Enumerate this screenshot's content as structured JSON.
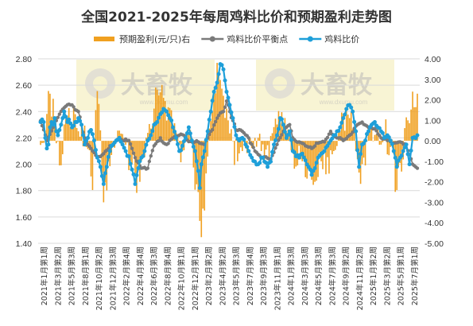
{
  "chart_data": {
    "type": "bar+line",
    "title": "全国2021-2025年每周鸡料比价和预期盈利走势图",
    "legend_position": "top",
    "watermark": {
      "brand": "大畜牧",
      "url": "www.dxumu.com"
    },
    "left_axis": {
      "min": 1.4,
      "max": 2.8,
      "ticks": [
        "1.40",
        "1.60",
        "1.80",
        "2.00",
        "2.20",
        "2.40",
        "2.60",
        "2.80"
      ]
    },
    "right_axis": {
      "min": -5,
      "max": 4,
      "ticks": [
        "-5.00",
        "-4.00",
        "-3.00",
        "-2.00",
        "-1.00",
        "0.00",
        "1.00",
        "2.00",
        "3.00",
        "4.00"
      ]
    },
    "x_tick_labels": [
      "2021年1月第1周",
      "2021年3月第2周",
      "2021年5月第3周",
      "2021年8月第1周",
      "2021年10月第2周",
      "2021年12月第3周",
      "2022年2月第4周",
      "2022年4月第4周",
      "2022年6月第3周",
      "2022年8月第4周",
      "2022年10月第1周",
      "2022年12月第1周",
      "2023年2月第2周",
      "2023年4月第2周",
      "2023年5月第3周",
      "2023年7月第4周",
      "2023年9月第3周",
      "2023年11月第1周",
      "2024年1月第3周",
      "2024年3月第3周",
      "2024年5月第3周",
      "2024年7月第3周",
      "2024年9月第2周",
      "2024年11月第2周",
      "2025年1月第2周",
      "2025年3月第2周",
      "2025年5月第1周",
      "2025年7月第1周"
    ],
    "weeks_count": 240,
    "series": [
      {
        "name": "预期盈利(元/只)右",
        "type": "bar",
        "axis": "right",
        "color": "#f0a020",
        "anchors": [
          [
            0,
            -0.2
          ],
          [
            3,
            0.5
          ],
          [
            6,
            2.3
          ],
          [
            9,
            1.0
          ],
          [
            12,
            -1.2
          ],
          [
            15,
            0.8
          ],
          [
            18,
            1.6
          ],
          [
            22,
            1.3
          ],
          [
            26,
            0.8
          ],
          [
            30,
            -0.4
          ],
          [
            33,
            -2.4
          ],
          [
            35,
            1.5
          ],
          [
            37,
            1.8
          ],
          [
            40,
            -3.0
          ],
          [
            43,
            -1.0
          ],
          [
            46,
            -0.3
          ],
          [
            50,
            0.5
          ],
          [
            54,
            -0.2
          ],
          [
            57,
            -1.0
          ],
          [
            60,
            -1.6
          ],
          [
            63,
            -2.0
          ],
          [
            66,
            -0.8
          ],
          [
            70,
            0.6
          ],
          [
            74,
            2.5
          ],
          [
            78,
            2.1
          ],
          [
            82,
            1.6
          ],
          [
            86,
            0.4
          ],
          [
            90,
            -0.5
          ],
          [
            94,
            0.3
          ],
          [
            97,
            -1.3
          ],
          [
            100,
            -2.5
          ],
          [
            102,
            -4.7
          ],
          [
            104,
            -3.4
          ],
          [
            107,
            0.6
          ],
          [
            110,
            2.5
          ],
          [
            113,
            3.3
          ],
          [
            116,
            2.2
          ],
          [
            119,
            1.0
          ],
          [
            122,
            0.0
          ],
          [
            125,
            -1.0
          ],
          [
            128,
            -0.5
          ],
          [
            131,
            -0.6
          ],
          [
            135,
            -0.3
          ],
          [
            140,
            -0.5
          ],
          [
            145,
            -0.8
          ],
          [
            150,
            0.8
          ],
          [
            153,
            1.4
          ],
          [
            156,
            0.4
          ],
          [
            160,
            -0.6
          ],
          [
            163,
            -1.2
          ],
          [
            166,
            -1.0
          ],
          [
            170,
            -1.4
          ],
          [
            174,
            -2.0
          ],
          [
            178,
            -1.0
          ],
          [
            182,
            -0.8
          ],
          [
            186,
            -0.5
          ],
          [
            190,
            0.5
          ],
          [
            194,
            1.6
          ],
          [
            197,
            1.4
          ],
          [
            200,
            -0.5
          ],
          [
            203,
            -2.1
          ],
          [
            206,
            -1.2
          ],
          [
            210,
            0.8
          ],
          [
            214,
            0.6
          ],
          [
            218,
            0.3
          ],
          [
            222,
            -0.3
          ],
          [
            226,
            -2.4
          ],
          [
            229,
            -1.5
          ],
          [
            233,
            1.0
          ],
          [
            236,
            2.4
          ],
          [
            239,
            2.3
          ]
        ]
      },
      {
        "name": "鸡料比价平衡点",
        "type": "line",
        "axis": "left",
        "color": "#7a7a7a",
        "anchors": [
          [
            0,
            2.33
          ],
          [
            4,
            2.18
          ],
          [
            8,
            2.28
          ],
          [
            12,
            2.38
          ],
          [
            16,
            2.44
          ],
          [
            20,
            2.45
          ],
          [
            24,
            2.4
          ],
          [
            28,
            2.2
          ],
          [
            32,
            2.12
          ],
          [
            36,
            2.05
          ],
          [
            40,
            2.08
          ],
          [
            44,
            2.14
          ],
          [
            48,
            2.18
          ],
          [
            52,
            2.18
          ],
          [
            56,
            2.18
          ],
          [
            60,
            2.05
          ],
          [
            64,
            1.97
          ],
          [
            68,
            1.97
          ],
          [
            72,
            2.14
          ],
          [
            76,
            2.2
          ],
          [
            80,
            2.15
          ],
          [
            84,
            2.2
          ],
          [
            88,
            2.22
          ],
          [
            92,
            2.2
          ],
          [
            96,
            2.17
          ],
          [
            100,
            2.17
          ],
          [
            104,
            2.15
          ],
          [
            108,
            2.25
          ],
          [
            112,
            2.35
          ],
          [
            116,
            2.4
          ],
          [
            118,
            2.48
          ],
          [
            120,
            2.4
          ],
          [
            124,
            2.26
          ],
          [
            128,
            2.25
          ],
          [
            132,
            2.2
          ],
          [
            136,
            2.1
          ],
          [
            140,
            2.05
          ],
          [
            146,
            2.04
          ],
          [
            150,
            2.15
          ],
          [
            154,
            2.25
          ],
          [
            158,
            2.3
          ],
          [
            160,
            2.2
          ],
          [
            164,
            2.17
          ],
          [
            168,
            2.14
          ],
          [
            172,
            2.12
          ],
          [
            176,
            2.16
          ],
          [
            180,
            2.17
          ],
          [
            184,
            2.25
          ],
          [
            188,
            2.2
          ],
          [
            192,
            2.18
          ],
          [
            196,
            2.22
          ],
          [
            200,
            2.29
          ],
          [
            204,
            2.32
          ],
          [
            208,
            2.28
          ],
          [
            212,
            2.27
          ],
          [
            216,
            2.2
          ],
          [
            220,
            2.18
          ],
          [
            224,
            2.16
          ],
          [
            228,
            2.17
          ],
          [
            232,
            2.15
          ],
          [
            236,
            2.0
          ],
          [
            239,
            1.97
          ]
        ]
      },
      {
        "name": "鸡料比价",
        "type": "line",
        "axis": "left",
        "color": "#1e9fd9",
        "anchors": [
          [
            0,
            2.32
          ],
          [
            1,
            2.34
          ],
          [
            2,
            2.32
          ],
          [
            3,
            2.2
          ],
          [
            4,
            2.12
          ],
          [
            5,
            2.15
          ],
          [
            6,
            2.28
          ],
          [
            7,
            2.32
          ],
          [
            8,
            2.3
          ],
          [
            9,
            2.35
          ],
          [
            10,
            2.25
          ],
          [
            11,
            2.22
          ],
          [
            12,
            2.26
          ],
          [
            13,
            2.3
          ],
          [
            14,
            2.35
          ],
          [
            15,
            2.4
          ],
          [
            16,
            2.36
          ],
          [
            17,
            2.32
          ],
          [
            18,
            2.34
          ],
          [
            19,
            2.31
          ],
          [
            20,
            2.28
          ],
          [
            22,
            2.32
          ],
          [
            24,
            2.35
          ],
          [
            26,
            2.3
          ],
          [
            28,
            2.15
          ],
          [
            30,
            2.2
          ],
          [
            32,
            2.26
          ],
          [
            34,
            2.18
          ],
          [
            36,
            2.05
          ],
          [
            38,
            1.98
          ],
          [
            40,
            1.85
          ],
          [
            42,
            1.98
          ],
          [
            44,
            2.1
          ],
          [
            46,
            2.15
          ],
          [
            48,
            2.18
          ],
          [
            50,
            2.2
          ],
          [
            52,
            2.15
          ],
          [
            54,
            2.1
          ],
          [
            56,
            2.06
          ],
          [
            58,
            1.96
          ],
          [
            60,
            1.85
          ],
          [
            62,
            1.97
          ],
          [
            64,
            2.05
          ],
          [
            66,
            2.1
          ],
          [
            68,
            2.18
          ],
          [
            70,
            2.22
          ],
          [
            72,
            2.3
          ],
          [
            74,
            2.32
          ],
          [
            76,
            2.38
          ],
          [
            78,
            2.42
          ],
          [
            80,
            2.4
          ],
          [
            82,
            2.35
          ],
          [
            84,
            2.28
          ],
          [
            86,
            2.2
          ],
          [
            88,
            2.1
          ],
          [
            90,
            2.14
          ],
          [
            92,
            2.2
          ],
          [
            94,
            2.28
          ],
          [
            96,
            2.18
          ],
          [
            98,
            2.1
          ],
          [
            100,
            1.95
          ],
          [
            101,
            1.82
          ],
          [
            102,
            2.0
          ],
          [
            104,
            2.1
          ],
          [
            106,
            2.25
          ],
          [
            108,
            2.4
          ],
          [
            110,
            2.55
          ],
          [
            112,
            2.62
          ],
          [
            114,
            2.76
          ],
          [
            116,
            2.72
          ],
          [
            118,
            2.55
          ],
          [
            120,
            2.45
          ],
          [
            122,
            2.35
          ],
          [
            124,
            2.22
          ],
          [
            126,
            2.18
          ],
          [
            128,
            2.2
          ],
          [
            130,
            2.15
          ],
          [
            132,
            2.1
          ],
          [
            134,
            2.05
          ],
          [
            136,
            2.02
          ],
          [
            138,
            2.0
          ],
          [
            140,
            2.05
          ],
          [
            142,
            2.02
          ],
          [
            144,
            1.98
          ],
          [
            146,
            2.02
          ],
          [
            148,
            2.15
          ],
          [
            150,
            2.22
          ],
          [
            152,
            2.35
          ],
          [
            154,
            2.3
          ],
          [
            156,
            2.2
          ],
          [
            158,
            2.25
          ],
          [
            160,
            2.1
          ],
          [
            162,
            2.06
          ],
          [
            164,
            2.05
          ],
          [
            166,
            2.08
          ],
          [
            168,
            2.03
          ],
          [
            170,
            1.98
          ],
          [
            172,
            1.92
          ],
          [
            174,
            1.97
          ],
          [
            176,
            2.05
          ],
          [
            178,
            2.08
          ],
          [
            180,
            2.1
          ],
          [
            182,
            2.14
          ],
          [
            184,
            2.18
          ],
          [
            186,
            2.22
          ],
          [
            188,
            2.25
          ],
          [
            190,
            2.28
          ],
          [
            192,
            2.35
          ],
          [
            194,
            2.42
          ],
          [
            196,
            2.45
          ],
          [
            198,
            2.4
          ],
          [
            200,
            2.25
          ],
          [
            202,
            1.98
          ],
          [
            204,
            2.15
          ],
          [
            206,
            2.18
          ],
          [
            208,
            2.25
          ],
          [
            210,
            2.3
          ],
          [
            212,
            2.32
          ],
          [
            214,
            2.28
          ],
          [
            216,
            2.25
          ],
          [
            218,
            2.2
          ],
          [
            220,
            2.22
          ],
          [
            222,
            2.18
          ],
          [
            224,
            2.1
          ],
          [
            226,
            1.98
          ],
          [
            228,
            2.05
          ],
          [
            230,
            2.1
          ],
          [
            232,
            2.15
          ],
          [
            234,
            2.0
          ],
          [
            236,
            2.2
          ],
          [
            239,
            2.22
          ]
        ]
      }
    ]
  }
}
